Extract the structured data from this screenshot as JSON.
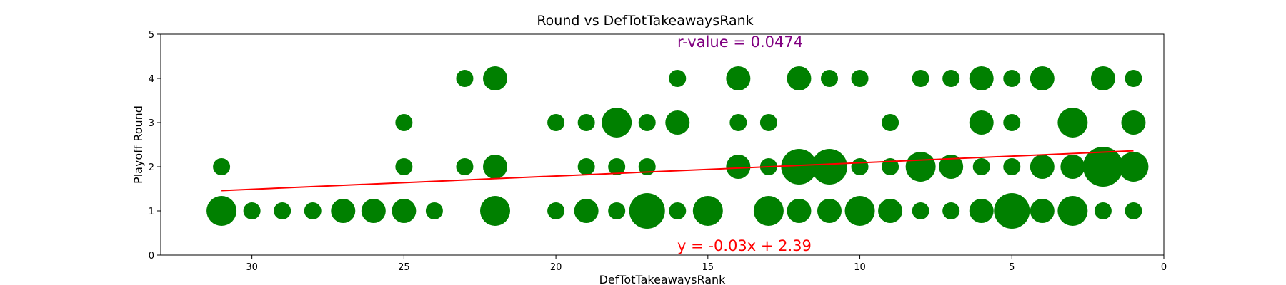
{
  "chart_data": {
    "type": "scatter",
    "title": "Round vs DefTotTakeawaysRank",
    "xlabel": "DefTotTakeawaysRank",
    "ylabel": "Playoff Round",
    "xlim": [
      33,
      0
    ],
    "ylim": [
      0,
      5
    ],
    "x_inverted": true,
    "xticks": [
      30,
      25,
      20,
      15,
      10,
      5,
      0
    ],
    "yticks": [
      0,
      1,
      2,
      3,
      4,
      5
    ],
    "grid": false,
    "point_color": "#008000",
    "regression": {
      "label": "y = -0.03x + 2.39",
      "slope": -0.03,
      "intercept": 2.39,
      "x_range": [
        31,
        1
      ],
      "color": "#ff0000"
    },
    "r_value_label": "r-value = 0.0474",
    "r_value_color": "#800080",
    "points": [
      {
        "x": 31,
        "y": 2,
        "size": 1
      },
      {
        "x": 25,
        "y": 2,
        "size": 1
      },
      {
        "x": 23,
        "y": 2,
        "size": 1
      },
      {
        "x": 22,
        "y": 2,
        "size": 2
      },
      {
        "x": 19,
        "y": 2,
        "size": 1
      },
      {
        "x": 18,
        "y": 2,
        "size": 1
      },
      {
        "x": 17,
        "y": 2,
        "size": 1
      },
      {
        "x": 14,
        "y": 2,
        "size": 2
      },
      {
        "x": 13,
        "y": 2,
        "size": 1
      },
      {
        "x": 12,
        "y": 2,
        "size": 4
      },
      {
        "x": 11,
        "y": 2,
        "size": 4
      },
      {
        "x": 10,
        "y": 2,
        "size": 1
      },
      {
        "x": 9,
        "y": 2,
        "size": 1
      },
      {
        "x": 8,
        "y": 2,
        "size": 3
      },
      {
        "x": 7,
        "y": 2,
        "size": 2
      },
      {
        "x": 6,
        "y": 2,
        "size": 1
      },
      {
        "x": 5,
        "y": 2,
        "size": 1
      },
      {
        "x": 4,
        "y": 2,
        "size": 2
      },
      {
        "x": 3,
        "y": 2,
        "size": 2
      },
      {
        "x": 2,
        "y": 2,
        "size": 5
      },
      {
        "x": 1,
        "y": 2,
        "size": 3
      },
      {
        "x": 23,
        "y": 4,
        "size": 1
      },
      {
        "x": 22,
        "y": 4,
        "size": 2
      },
      {
        "x": 16,
        "y": 4,
        "size": 1
      },
      {
        "x": 14,
        "y": 4,
        "size": 2
      },
      {
        "x": 12,
        "y": 4,
        "size": 2
      },
      {
        "x": 11,
        "y": 4,
        "size": 1
      },
      {
        "x": 10,
        "y": 4,
        "size": 1
      },
      {
        "x": 8,
        "y": 4,
        "size": 1
      },
      {
        "x": 7,
        "y": 4,
        "size": 1
      },
      {
        "x": 6,
        "y": 4,
        "size": 2
      },
      {
        "x": 5,
        "y": 4,
        "size": 1
      },
      {
        "x": 4,
        "y": 4,
        "size": 2
      },
      {
        "x": 2,
        "y": 4,
        "size": 2
      },
      {
        "x": 1,
        "y": 4,
        "size": 1
      },
      {
        "x": 25,
        "y": 3,
        "size": 1
      },
      {
        "x": 20,
        "y": 3,
        "size": 1
      },
      {
        "x": 19,
        "y": 3,
        "size": 1
      },
      {
        "x": 18,
        "y": 3,
        "size": 3
      },
      {
        "x": 17,
        "y": 3,
        "size": 1
      },
      {
        "x": 16,
        "y": 3,
        "size": 2
      },
      {
        "x": 14,
        "y": 3,
        "size": 1
      },
      {
        "x": 13,
        "y": 3,
        "size": 1
      },
      {
        "x": 9,
        "y": 3,
        "size": 1
      },
      {
        "x": 6,
        "y": 3,
        "size": 2
      },
      {
        "x": 5,
        "y": 3,
        "size": 1
      },
      {
        "x": 3,
        "y": 3,
        "size": 3
      },
      {
        "x": 1,
        "y": 3,
        "size": 2
      },
      {
        "x": 31,
        "y": 1,
        "size": 3
      },
      {
        "x": 30,
        "y": 1,
        "size": 1
      },
      {
        "x": 29,
        "y": 1,
        "size": 1
      },
      {
        "x": 28,
        "y": 1,
        "size": 1
      },
      {
        "x": 27,
        "y": 1,
        "size": 2
      },
      {
        "x": 26,
        "y": 1,
        "size": 2
      },
      {
        "x": 25,
        "y": 1,
        "size": 2
      },
      {
        "x": 24,
        "y": 1,
        "size": 1
      },
      {
        "x": 22,
        "y": 1,
        "size": 3
      },
      {
        "x": 20,
        "y": 1,
        "size": 1
      },
      {
        "x": 19,
        "y": 1,
        "size": 2
      },
      {
        "x": 18,
        "y": 1,
        "size": 1
      },
      {
        "x": 17,
        "y": 1,
        "size": 4
      },
      {
        "x": 16,
        "y": 1,
        "size": 1
      },
      {
        "x": 15,
        "y": 1,
        "size": 3
      },
      {
        "x": 13,
        "y": 1,
        "size": 3
      },
      {
        "x": 12,
        "y": 1,
        "size": 2
      },
      {
        "x": 11,
        "y": 1,
        "size": 2
      },
      {
        "x": 10,
        "y": 1,
        "size": 3
      },
      {
        "x": 9,
        "y": 1,
        "size": 2
      },
      {
        "x": 8,
        "y": 1,
        "size": 1
      },
      {
        "x": 7,
        "y": 1,
        "size": 1
      },
      {
        "x": 6,
        "y": 1,
        "size": 2
      },
      {
        "x": 5,
        "y": 1,
        "size": 4
      },
      {
        "x": 4,
        "y": 1,
        "size": 2
      },
      {
        "x": 3,
        "y": 1,
        "size": 3
      },
      {
        "x": 2,
        "y": 1,
        "size": 1
      },
      {
        "x": 1,
        "y": 1,
        "size": 1
      }
    ]
  }
}
